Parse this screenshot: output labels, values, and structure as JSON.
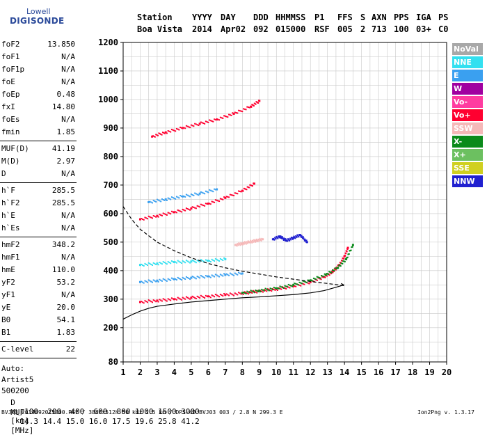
{
  "logo": {
    "line1": "Lowell",
    "line2": "DIGISONDE"
  },
  "header": {
    "labels": [
      "Station",
      "YYYY",
      "DAY",
      "DDD",
      "HHMMSS",
      "P1",
      "FFS",
      "S",
      "AXN",
      "PPS",
      "IGA",
      "PS"
    ],
    "values": [
      "Boa Vista",
      "2014",
      "Apr02",
      "092",
      "015000",
      "RSF",
      "005",
      "2",
      "713",
      "100",
      "03+",
      "C0"
    ]
  },
  "params": {
    "group1": [
      {
        "name": "foF2",
        "value": "13.850"
      },
      {
        "name": "foF1",
        "value": "N/A"
      },
      {
        "name": "foF1p",
        "value": "N/A"
      },
      {
        "name": "foE",
        "value": "N/A"
      },
      {
        "name": "foEp",
        "value": "0.48"
      },
      {
        "name": "fxI",
        "value": "14.80"
      },
      {
        "name": "foEs",
        "value": "N/A"
      },
      {
        "name": "fmin",
        "value": "1.85"
      }
    ],
    "group2": [
      {
        "name": "MUF(D)",
        "value": "41.19"
      },
      {
        "name": "M(D)",
        "value": "2.97"
      },
      {
        "name": "D",
        "value": "N/A"
      }
    ],
    "group3": [
      {
        "name": "h`F",
        "value": "285.5"
      },
      {
        "name": "h`F2",
        "value": "285.5"
      },
      {
        "name": "h`E",
        "value": "N/A"
      },
      {
        "name": "h`Es",
        "value": "N/A"
      }
    ],
    "group4": [
      {
        "name": "hmF2",
        "value": "348.2"
      },
      {
        "name": "hmF1",
        "value": "N/A"
      },
      {
        "name": "hmE",
        "value": "110.0"
      },
      {
        "name": "yF2",
        "value": "53.2"
      },
      {
        "name": "yF1",
        "value": "N/A"
      },
      {
        "name": "yE",
        "value": "20.0"
      },
      {
        "name": "B0",
        "value": "54.1"
      },
      {
        "name": "B1",
        "value": "1.83"
      }
    ],
    "group5": [
      {
        "name": "C-level",
        "value": "22"
      }
    ],
    "extra": [
      "Auto:",
      "Artist5",
      "500200"
    ]
  },
  "legend": [
    {
      "label": "NoVal",
      "color": "#a8a8a8"
    },
    {
      "label": "NNE",
      "color": "#33e0f0"
    },
    {
      "label": "E",
      "color": "#3aa0f0"
    },
    {
      "label": "W",
      "color": "#a000a0"
    },
    {
      "label": "Vo-",
      "color": "#ff3ca0"
    },
    {
      "label": "Vo+",
      "color": "#ff0030"
    },
    {
      "label": "SSW",
      "color": "#f5b8b8"
    },
    {
      "label": "X-",
      "color": "#0a8a1a"
    },
    {
      "label": "X+",
      "color": "#6cc060"
    },
    {
      "label": "SSE",
      "color": "#d0d020"
    },
    {
      "label": "NNW",
      "color": "#2020d0"
    }
  ],
  "muf_table": {
    "d_label": "D",
    "d_values": [
      "100",
      "200",
      "400",
      "600",
      "800",
      "1000",
      "1500",
      "3000"
    ],
    "d_unit": "[km]",
    "muf_label": "MUF",
    "muf_values": [
      "14.3",
      "14.4",
      "15.0",
      "16.0",
      "17.5",
      "19.6",
      "25.8",
      "41.2"
    ],
    "muf_unit": "[MHz]"
  },
  "footer": {
    "left": "BVJ03_2014092015000.RSF / 384fx512h 50 kHz 2.5 km / DPS-4D BVJ03 003 / 2.8 N 299.3 E",
    "right": "Ion2Png v. 1.3.17"
  },
  "chart_data": {
    "type": "scatter",
    "xlim": [
      1,
      20
    ],
    "ylim": [
      80,
      1200
    ],
    "x_ticks": [
      1,
      2,
      3,
      4,
      5,
      6,
      7,
      8,
      9,
      10,
      11,
      12,
      13,
      14,
      15,
      16,
      17,
      18,
      19,
      20
    ],
    "y_ticks": [
      80,
      200,
      300,
      400,
      500,
      600,
      700,
      800,
      900,
      1000,
      1100,
      1200
    ],
    "grid": true,
    "legend_position": "right",
    "series": [
      {
        "name": "Vo+",
        "color": "#ff0030",
        "x": [
          2.0,
          3.0,
          4.0,
          5.0,
          6.0,
          7.0,
          8.0,
          9.0,
          10.0,
          11.0,
          12.0,
          12.8,
          13.3,
          13.7,
          14.0,
          14.2
        ],
        "y": [
          290,
          295,
          300,
          305,
          310,
          315,
          320,
          328,
          335,
          345,
          360,
          378,
          395,
          420,
          450,
          480
        ]
      },
      {
        "name": "X-",
        "color": "#0a8a1a",
        "x": [
          8.0,
          9.0,
          10.0,
          11.0,
          12.0,
          12.9,
          13.6,
          14.1,
          14.5
        ],
        "y": [
          322,
          330,
          338,
          350,
          366,
          385,
          410,
          440,
          490
        ]
      },
      {
        "name": "Vo+",
        "color": "#ff0030",
        "x": [
          2.0,
          3.0,
          4.0,
          5.0,
          6.0,
          7.0,
          8.0,
          8.7
        ],
        "y": [
          580,
          592,
          605,
          618,
          635,
          655,
          680,
          705
        ]
      },
      {
        "name": "Vo+",
        "color": "#ff0030",
        "x": [
          2.7,
          3.5,
          4.5,
          5.5,
          6.5,
          7.5,
          8.5,
          9.0
        ],
        "y": [
          870,
          885,
          900,
          915,
          930,
          950,
          975,
          995
        ]
      },
      {
        "name": "E",
        "color": "#3aa0f0",
        "x": [
          2.0,
          3.0,
          4.0,
          5.0,
          6.0,
          7.0,
          8.0
        ],
        "y": [
          360,
          365,
          370,
          375,
          380,
          385,
          390
        ]
      },
      {
        "name": "E",
        "color": "#3aa0f0",
        "x": [
          2.5,
          3.5,
          4.5,
          5.5,
          6.5
        ],
        "y": [
          640,
          650,
          660,
          670,
          685
        ]
      },
      {
        "name": "NNE",
        "color": "#33e0f0",
        "x": [
          2.0,
          3.0,
          4.0,
          5.0,
          6.0,
          7.0
        ],
        "y": [
          420,
          425,
          430,
          432,
          435,
          440
        ]
      },
      {
        "name": "NNW",
        "color": "#2020d0",
        "x": [
          9.8,
          10.2,
          10.6,
          11.0,
          11.4,
          11.8
        ],
        "y": [
          510,
          520,
          505,
          515,
          525,
          500
        ]
      },
      {
        "name": "SSW",
        "color": "#f5b8b8",
        "x": [
          7.6,
          8.0,
          8.4,
          8.8,
          9.2
        ],
        "y": [
          490,
          495,
          500,
          505,
          510
        ]
      }
    ],
    "curves": [
      {
        "style": "solid",
        "x": [
          1.0,
          1.5,
          2.0,
          2.5,
          3.0,
          4.0,
          5.0,
          6.0,
          7.0,
          8.0,
          9.0,
          10.0,
          11.0,
          12.0,
          12.8,
          13.4,
          13.8,
          13.95,
          13.8
        ],
        "y": [
          230,
          245,
          258,
          268,
          275,
          283,
          290,
          295,
          300,
          305,
          308,
          312,
          316,
          322,
          330,
          340,
          347,
          350,
          355
        ]
      },
      {
        "style": "dashed",
        "x": [
          1.0,
          1.5,
          2.0,
          3.0,
          4.0,
          5.0,
          6.0,
          7.0,
          8.0,
          9.0,
          10.0,
          11.0,
          12.0,
          13.0,
          14.0
        ],
        "y": [
          625,
          580,
          545,
          500,
          470,
          445,
          425,
          410,
          398,
          388,
          378,
          370,
          362,
          355,
          347
        ]
      }
    ]
  }
}
